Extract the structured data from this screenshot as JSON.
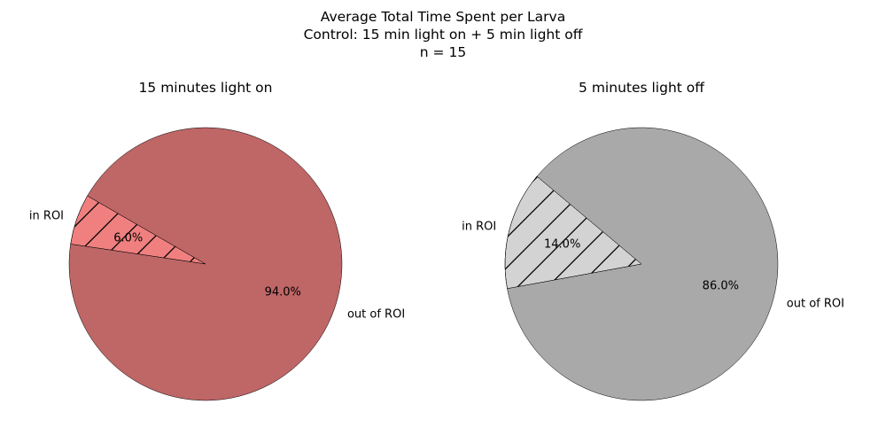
{
  "figure": {
    "suptitle_lines": [
      "Average Total Time Spent per Larva",
      "Control: 15 min light on + 5 min light off",
      "n = 15"
    ]
  },
  "chart_data": [
    {
      "type": "pie",
      "title": "15 minutes light on",
      "labels": [
        "in ROI",
        "out of ROI"
      ],
      "values": [
        6.0,
        94.0
      ],
      "value_labels": [
        "6.0%",
        "94.0%"
      ],
      "colors": [
        "#f08080",
        "#bf6666"
      ],
      "hatched": [
        true,
        false
      ],
      "start_angle_deg": 150
    },
    {
      "type": "pie",
      "title": "5 minutes light off",
      "labels": [
        "in ROI",
        "out of ROI"
      ],
      "values": [
        14.0,
        86.0
      ],
      "value_labels": [
        "14.0%",
        "86.0%"
      ],
      "colors": [
        "#d3d3d3",
        "#a9a9a9"
      ],
      "hatched": [
        true,
        false
      ],
      "start_angle_deg": 140
    }
  ]
}
